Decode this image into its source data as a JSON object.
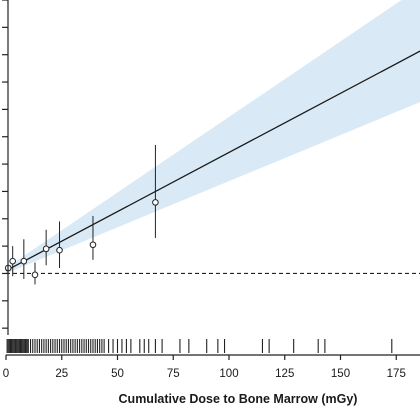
{
  "chart_data": {
    "type": "scatter",
    "title": "",
    "xlabel": "Cumulative Dose to Bone Marrow (mGy)",
    "ylabel": "",
    "xlim": [
      0,
      200
    ],
    "ylim": [
      0.55,
      3.0
    ],
    "x_ticks": [
      0,
      25,
      50,
      75,
      100,
      125,
      150,
      175
    ],
    "x_tick_labels": [
      "0",
      "25",
      "50",
      "75",
      "100",
      "125",
      "150",
      "175"
    ],
    "y_tick_values": [
      0.6,
      0.8,
      1.0,
      1.2,
      1.4,
      1.6,
      1.8,
      2.0,
      2.2,
      2.4,
      2.6,
      2.8,
      3.0
    ],
    "reference_line": {
      "y": 1.0,
      "style": "dashed"
    },
    "fit_line": {
      "x": [
        0,
        200
      ],
      "y": [
        1.02,
        2.75
      ]
    },
    "confidence_band": {
      "x": [
        0,
        200
      ],
      "lower": [
        1.0,
        2.35
      ],
      "upper": [
        1.04,
        3.25
      ]
    },
    "points": [
      {
        "x": 1,
        "y": 1.04,
        "lo": 1.04,
        "hi": 1.04
      },
      {
        "x": 3,
        "y": 1.09,
        "lo": 0.98,
        "hi": 1.2
      },
      {
        "x": 8,
        "y": 1.09,
        "lo": 0.96,
        "hi": 1.25
      },
      {
        "x": 13,
        "y": 0.99,
        "lo": 0.92,
        "hi": 1.08
      },
      {
        "x": 18,
        "y": 1.18,
        "lo": 1.06,
        "hi": 1.32
      },
      {
        "x": 24,
        "y": 1.17,
        "lo": 1.04,
        "hi": 1.38
      },
      {
        "x": 39,
        "y": 1.21,
        "lo": 1.1,
        "hi": 1.42
      },
      {
        "x": 67,
        "y": 1.52,
        "lo": 1.26,
        "hi": 1.94
      }
    ],
    "rug_x": [
      0.5,
      1,
      1.5,
      2,
      2.5,
      3,
      3.5,
      4,
      4.5,
      5,
      5.5,
      6,
      6.5,
      7,
      7.5,
      8,
      8.5,
      9,
      9.5,
      10,
      11,
      12,
      13,
      14,
      15,
      16,
      17,
      18,
      19,
      20,
      21,
      22,
      23,
      24,
      25,
      26,
      27,
      28,
      29,
      30,
      31,
      32,
      33,
      34,
      35,
      36,
      37,
      38,
      39,
      40,
      41,
      42,
      43,
      44,
      46,
      48,
      50,
      52,
      54,
      56,
      60,
      62,
      64,
      67,
      70,
      78,
      82,
      90,
      95,
      98,
      115,
      118,
      129,
      140,
      143,
      173
    ],
    "band_color": "#d9eaf6",
    "line_color": "#1a1a1a"
  }
}
